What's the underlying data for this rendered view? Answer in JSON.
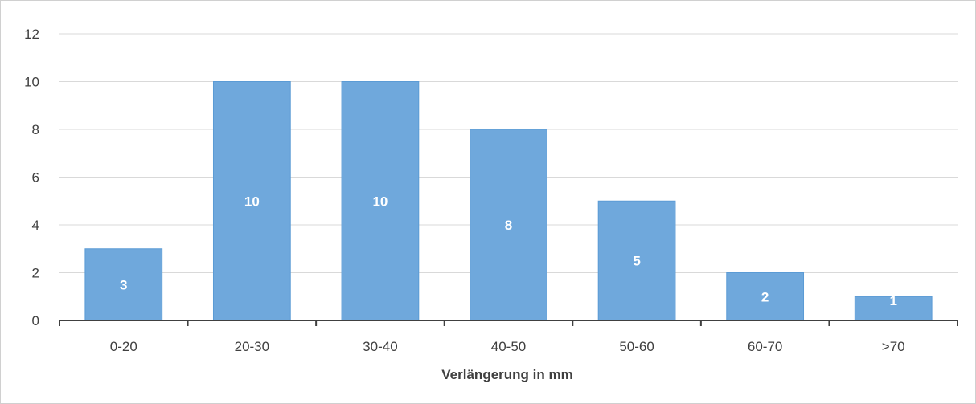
{
  "chart_data": {
    "type": "bar",
    "categories": [
      "0-20",
      "20-30",
      "30-40",
      "40-50",
      "50-60",
      "60-70",
      ">70"
    ],
    "values": [
      3,
      10,
      10,
      8,
      5,
      2,
      1
    ],
    "title": "",
    "xlabel": "Verlängerung in mm",
    "ylabel": "",
    "ylim": [
      0,
      12
    ],
    "yticks": [
      0,
      2,
      4,
      6,
      8,
      10,
      12
    ],
    "grid": true,
    "legend": "none",
    "data_labels": true,
    "bar_color": "#6fa8dc",
    "bar_border_color": "#5b9bd5",
    "grid_color": "#d9d9d9",
    "axis_color": "#404040"
  }
}
